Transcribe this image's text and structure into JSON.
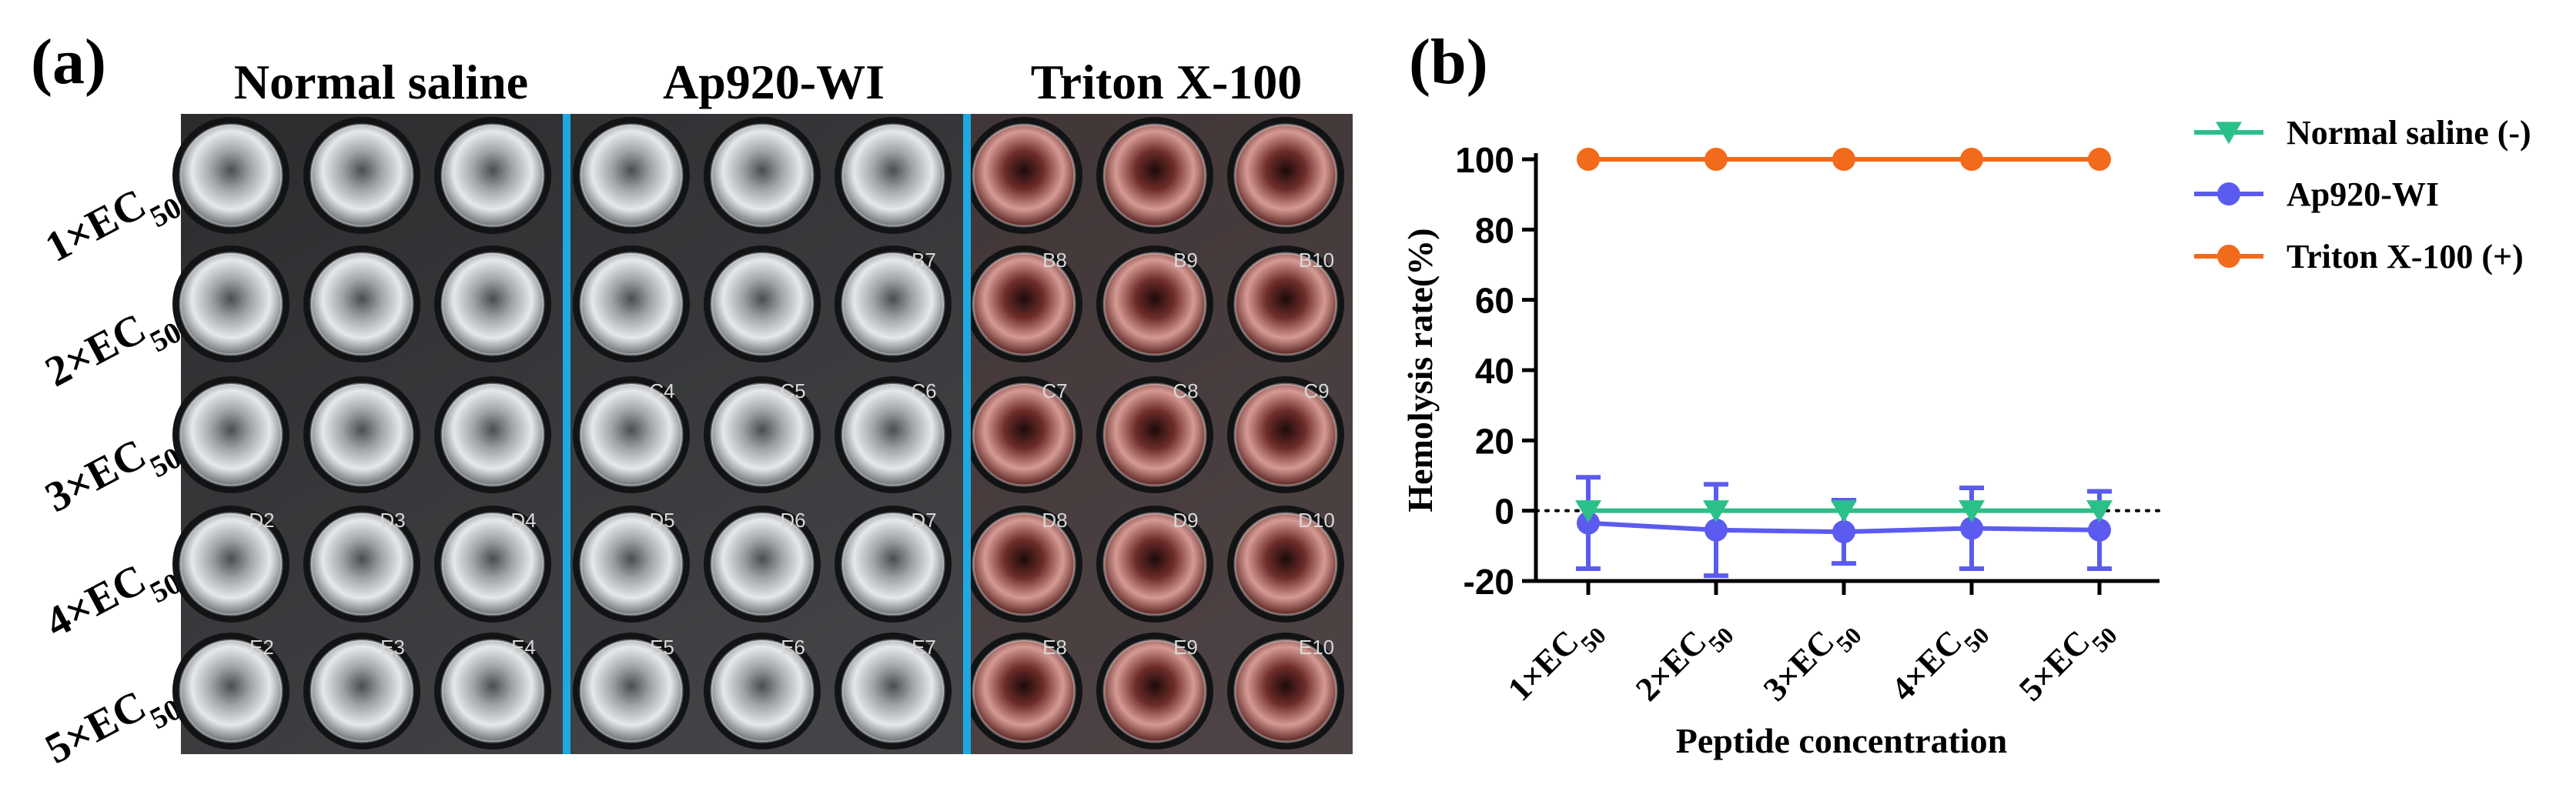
{
  "panel_a": {
    "label": "(a)",
    "groups": [
      "Normal saline",
      "Ap920-WI",
      "Triton X-100"
    ],
    "rows": [
      {
        "base": "1×EC",
        "sub": "50"
      },
      {
        "base": "2×EC",
        "sub": "50"
      },
      {
        "base": "3×EC",
        "sub": "50"
      },
      {
        "base": "4×EC",
        "sub": "50"
      },
      {
        "base": "5×EC",
        "sub": "50"
      }
    ],
    "well_labels": [
      [
        "",
        "",
        "",
        "",
        "",
        "",
        "",
        "",
        ""
      ],
      [
        "",
        "",
        "",
        "",
        "",
        "B7",
        "B8",
        "B9",
        "B10"
      ],
      [
        "",
        "",
        "",
        "C4",
        "C5",
        "C6",
        "C7",
        "C8",
        "C9"
      ],
      [
        "D2",
        "D3",
        "D4",
        "D5",
        "D6",
        "D7",
        "D8",
        "D9",
        "D10"
      ],
      [
        "E2",
        "E3",
        "E4",
        "E5",
        "E6",
        "E7",
        "E8",
        "E9",
        "E10"
      ]
    ],
    "colors": {
      "separator": "#1fa8e0",
      "clear_well": "#c9ccce",
      "red_well": "#9c4a46"
    }
  },
  "chart_data": {
    "panel_label": "(b)",
    "type": "line",
    "categories": [
      {
        "base": "1×EC",
        "sub": "50"
      },
      {
        "base": "2×EC",
        "sub": "50"
      },
      {
        "base": "3×EC",
        "sub": "50"
      },
      {
        "base": "4×EC",
        "sub": "50"
      },
      {
        "base": "5×EC",
        "sub": "50"
      }
    ],
    "series": [
      {
        "name": "Normal saline (-)",
        "marker": "triangle-down",
        "color": "#2bbf8a",
        "values": [
          0,
          0,
          0,
          0,
          0
        ],
        "error": [
          0,
          0,
          0,
          0,
          0
        ]
      },
      {
        "name": "Ap920-WI",
        "marker": "circle",
        "color": "#5b5bf0",
        "values": [
          -3.5,
          -5.5,
          -6,
          -5,
          -5.5
        ],
        "error": [
          13,
          13,
          9,
          11.5,
          11
        ]
      },
      {
        "name": "Triton X-100 (+)",
        "marker": "circle",
        "color": "#f26a1b",
        "values": [
          100,
          100,
          100,
          100,
          100
        ],
        "error": [
          0,
          0,
          0,
          0,
          0
        ]
      }
    ],
    "xlabel": "Peptide concentration",
    "ylabel": "Hemolysis rate(%)",
    "ylim": [
      -20,
      100
    ],
    "yticks": [
      -20,
      0,
      20,
      40,
      60,
      80,
      100
    ],
    "zero_line": "dotted",
    "legend_position": "top-right"
  }
}
